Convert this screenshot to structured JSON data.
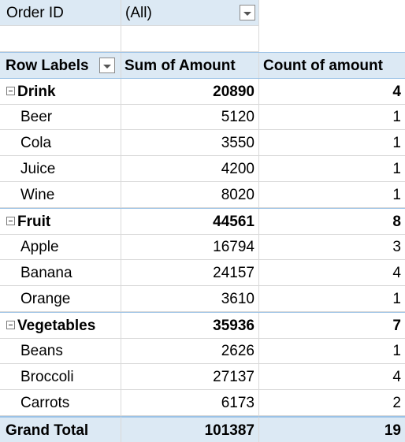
{
  "filter": {
    "label": "Order ID",
    "value": "(All)",
    "dropdown_icon": "chevron-down-icon"
  },
  "header": {
    "row_labels": "Row Labels",
    "sum_amount": "Sum of Amount",
    "count_amount": "Count of amount"
  },
  "groups": [
    {
      "name": "Drink",
      "sum": "20890",
      "count": "4",
      "items": [
        {
          "name": "Beer",
          "sum": "5120",
          "count": "1"
        },
        {
          "name": "Cola",
          "sum": "3550",
          "count": "1"
        },
        {
          "name": "Juice",
          "sum": "4200",
          "count": "1"
        },
        {
          "name": "Wine",
          "sum": "8020",
          "count": "1"
        }
      ]
    },
    {
      "name": "Fruit",
      "sum": "44561",
      "count": "8",
      "items": [
        {
          "name": "Apple",
          "sum": "16794",
          "count": "3"
        },
        {
          "name": "Banana",
          "sum": "24157",
          "count": "4"
        },
        {
          "name": "Orange",
          "sum": "3610",
          "count": "1"
        }
      ]
    },
    {
      "name": "Vegetables",
      "sum": "35936",
      "count": "7",
      "items": [
        {
          "name": "Beans",
          "sum": "2626",
          "count": "1"
        },
        {
          "name": "Broccoli",
          "sum": "27137",
          "count": "4"
        },
        {
          "name": "Carrots",
          "sum": "6173",
          "count": "2"
        }
      ]
    }
  ],
  "grand_total": {
    "label": "Grand Total",
    "sum": "101387",
    "count": "19"
  },
  "colors": {
    "header_fill": "#dce9f4",
    "accent_border": "#9bc2e6",
    "gridline": "#d9d9d9"
  }
}
